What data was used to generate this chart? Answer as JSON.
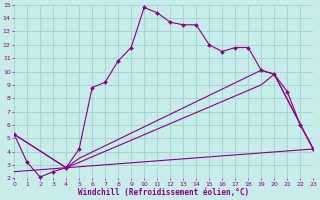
{
  "bg_color": "#c8ece8",
  "grid_color": "#aad4d0",
  "line_color": "#880088",
  "xlabel": "Windchill (Refroidissement éolien,°C)",
  "xlim": [
    0,
    23
  ],
  "ylim": [
    2,
    15
  ],
  "xticks": [
    0,
    1,
    2,
    3,
    4,
    5,
    6,
    7,
    8,
    9,
    10,
    11,
    12,
    13,
    14,
    15,
    16,
    17,
    18,
    19,
    20,
    21,
    22,
    23
  ],
  "yticks": [
    2,
    3,
    4,
    5,
    6,
    7,
    8,
    9,
    10,
    11,
    12,
    13,
    14,
    15
  ],
  "line1_x": [
    0,
    1,
    2,
    3,
    4,
    5,
    6,
    7,
    8,
    9,
    10,
    11,
    12,
    13,
    14,
    15,
    16,
    17,
    18,
    19,
    20,
    21,
    22,
    23
  ],
  "line1_y": [
    5.3,
    3.2,
    2.1,
    2.5,
    2.8,
    4.2,
    8.8,
    9.2,
    10.8,
    11.8,
    14.8,
    14.4,
    13.7,
    13.5,
    13.5,
    12.0,
    11.5,
    11.8,
    11.8,
    10.1,
    9.8,
    8.5,
    6.0,
    4.2
  ],
  "line2_x": [
    0,
    4,
    5,
    19,
    20,
    23
  ],
  "line2_y": [
    5.3,
    2.8,
    3.5,
    10.1,
    9.8,
    4.2
  ],
  "line3_x": [
    0,
    4,
    5,
    19,
    20,
    23
  ],
  "line3_y": [
    5.3,
    2.8,
    3.2,
    9.0,
    9.8,
    4.2
  ],
  "line4_x": [
    0,
    23
  ],
  "line4_y": [
    2.5,
    4.2
  ]
}
